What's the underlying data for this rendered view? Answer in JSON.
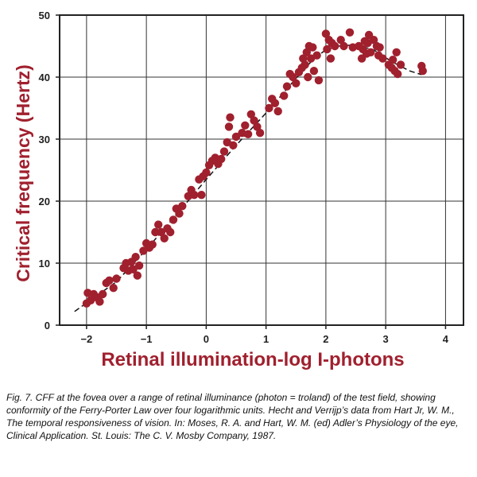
{
  "chart_data": {
    "type": "scatter",
    "title": "",
    "xlabel": "Retinal illumination-log I-photons",
    "ylabel": "Critical frequency (Hertz)",
    "xlim": [
      -2.45,
      4.3
    ],
    "ylim": [
      0,
      50
    ],
    "xticks": [
      -2,
      -1,
      0,
      1,
      2,
      3,
      4
    ],
    "xtick_labels": [
      "−2",
      "−1",
      "0",
      "1",
      "2",
      "3",
      "4"
    ],
    "yticks": [
      0,
      10,
      20,
      30,
      40,
      50
    ],
    "ytick_labels": [
      "0",
      "10",
      "20",
      "30",
      "40",
      "50"
    ],
    "grid": true,
    "point_color": "#a0202e",
    "curve_color": "#111111",
    "series": [
      {
        "values": [
          [
            -2.0,
            3.5
          ],
          [
            -1.98,
            5.2
          ],
          [
            -1.93,
            4.0
          ],
          [
            -1.88,
            5.0
          ],
          [
            -1.83,
            4.5
          ],
          [
            -1.78,
            3.8
          ],
          [
            -1.73,
            5.0
          ],
          [
            -1.67,
            6.8
          ],
          [
            -1.62,
            7.2
          ],
          [
            -1.55,
            6.0
          ],
          [
            -1.5,
            7.5
          ],
          [
            -1.38,
            9.2
          ],
          [
            -1.34,
            10.0
          ],
          [
            -1.3,
            8.8
          ],
          [
            -1.25,
            10.2
          ],
          [
            -1.22,
            9.0
          ],
          [
            -1.18,
            11.0
          ],
          [
            -1.15,
            8.0
          ],
          [
            -1.12,
            9.6
          ],
          [
            -1.05,
            12.0
          ],
          [
            -1.0,
            13.2
          ],
          [
            -0.95,
            12.5
          ],
          [
            -0.9,
            13.0
          ],
          [
            -0.85,
            15.0
          ],
          [
            -0.8,
            16.2
          ],
          [
            -0.75,
            15.0
          ],
          [
            -0.7,
            14.0
          ],
          [
            -0.65,
            15.6
          ],
          [
            -0.6,
            15.0
          ],
          [
            -0.55,
            17.0
          ],
          [
            -0.5,
            18.8
          ],
          [
            -0.45,
            18.0
          ],
          [
            -0.4,
            19.2
          ],
          [
            -0.3,
            20.8
          ],
          [
            -0.25,
            21.8
          ],
          [
            -0.2,
            21.0
          ],
          [
            -0.12,
            23.5
          ],
          [
            -0.08,
            21.0
          ],
          [
            -0.05,
            24.0
          ],
          [
            0.0,
            24.6
          ],
          [
            0.05,
            25.8
          ],
          [
            0.1,
            26.5
          ],
          [
            0.15,
            27.0
          ],
          [
            0.2,
            26.0
          ],
          [
            0.25,
            26.8
          ],
          [
            0.3,
            28.0
          ],
          [
            0.35,
            29.5
          ],
          [
            0.38,
            32.0
          ],
          [
            0.4,
            33.5
          ],
          [
            0.45,
            29.0
          ],
          [
            0.5,
            30.4
          ],
          [
            0.6,
            31.0
          ],
          [
            0.65,
            32.2
          ],
          [
            0.7,
            30.8
          ],
          [
            0.75,
            34.0
          ],
          [
            0.8,
            33.0
          ],
          [
            0.85,
            32.0
          ],
          [
            0.9,
            31.0
          ],
          [
            1.05,
            35.0
          ],
          [
            1.1,
            36.5
          ],
          [
            1.15,
            35.8
          ],
          [
            1.2,
            34.5
          ],
          [
            1.3,
            37.0
          ],
          [
            1.35,
            38.5
          ],
          [
            1.4,
            40.5
          ],
          [
            1.45,
            40.0
          ],
          [
            1.5,
            39.0
          ],
          [
            1.55,
            40.8
          ],
          [
            1.6,
            41.5
          ],
          [
            1.62,
            43.0
          ],
          [
            1.65,
            42.0
          ],
          [
            1.68,
            44.0
          ],
          [
            1.7,
            40.0
          ],
          [
            1.72,
            45.0
          ],
          [
            1.75,
            43.0
          ],
          [
            1.78,
            44.8
          ],
          [
            1.8,
            41.0
          ],
          [
            1.85,
            43.5
          ],
          [
            1.88,
            39.5
          ],
          [
            2.0,
            47.0
          ],
          [
            2.02,
            44.5
          ],
          [
            2.05,
            46.0
          ],
          [
            2.08,
            43.0
          ],
          [
            2.1,
            45.5
          ],
          [
            2.15,
            45.0
          ],
          [
            2.25,
            46.0
          ],
          [
            2.3,
            45.0
          ],
          [
            2.4,
            47.2
          ],
          [
            2.45,
            44.8
          ],
          [
            2.55,
            45.0
          ],
          [
            2.6,
            43.0
          ],
          [
            2.62,
            44.5
          ],
          [
            2.65,
            45.8
          ],
          [
            2.68,
            43.8
          ],
          [
            2.7,
            45.5
          ],
          [
            2.72,
            46.8
          ],
          [
            2.75,
            44.0
          ],
          [
            2.8,
            46.0
          ],
          [
            2.85,
            45.0
          ],
          [
            2.88,
            43.5
          ],
          [
            2.9,
            44.8
          ],
          [
            2.95,
            43.0
          ],
          [
            3.05,
            42.0
          ],
          [
            3.1,
            41.5
          ],
          [
            3.12,
            42.8
          ],
          [
            3.15,
            41.0
          ],
          [
            3.18,
            44.0
          ],
          [
            3.2,
            40.5
          ],
          [
            3.25,
            42.0
          ],
          [
            3.6,
            41.8
          ],
          [
            3.62,
            41.0
          ]
        ]
      }
    ],
    "fit_curve": [
      [
        -2.2,
        2.2
      ],
      [
        -1.5,
        7.0
      ],
      [
        -1.0,
        12.2
      ],
      [
        -0.5,
        17.8
      ],
      [
        0.0,
        23.5
      ],
      [
        0.5,
        29.0
      ],
      [
        1.0,
        34.2
      ],
      [
        1.5,
        39.8
      ],
      [
        1.8,
        43.0
      ],
      [
        2.0,
        44.4
      ],
      [
        2.2,
        45.0
      ],
      [
        2.5,
        45.2
      ],
      [
        2.8,
        44.4
      ],
      [
        3.1,
        42.5
      ],
      [
        3.4,
        41.0
      ],
      [
        3.6,
        40.4
      ]
    ]
  },
  "caption": "Fig. 7. CFF at the fovea over a range of retinal illuminance (photon = troland) of the test field, showing conformity of the Ferry-Porter Law over four logarithmic units. Hecht and Verrijp’s data from Hart Jr, W. M.,  The temporal responsiveness of vision. In: Moses, R. A. and Hart, W. M. (ed) Adler’s Physiology of the eye, Clinical Application. St. Louis: The C. V. Mosby Company, 1987."
}
